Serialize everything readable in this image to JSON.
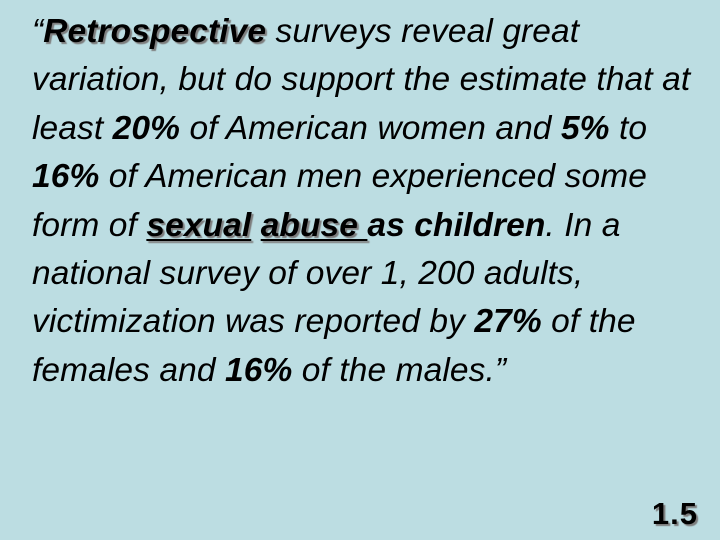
{
  "slide": {
    "background_color": "#bcdde2",
    "text_color": "#000000",
    "quote": {
      "open_quote": "“",
      "retrospective": "Retrospective",
      "t1": " surveys reveal great variation, but do support the estimate that at least ",
      "p20": "20%",
      "t2": " of American women and ",
      "p5": "5%",
      "t3": " to ",
      "p16a": "16%",
      "t4": " of American men experienced some form of ",
      "sexual": "sexual",
      "space": " ",
      "abuse": "abuse ",
      "as_children": "as children",
      "t5": ".  In a national survey of over 1, 200 adults, victimization was reported by ",
      "p27": "27%",
      "t6": " of the females and ",
      "p16b": "16%",
      "t7": " of the males.”"
    },
    "slide_number": "1.5"
  }
}
